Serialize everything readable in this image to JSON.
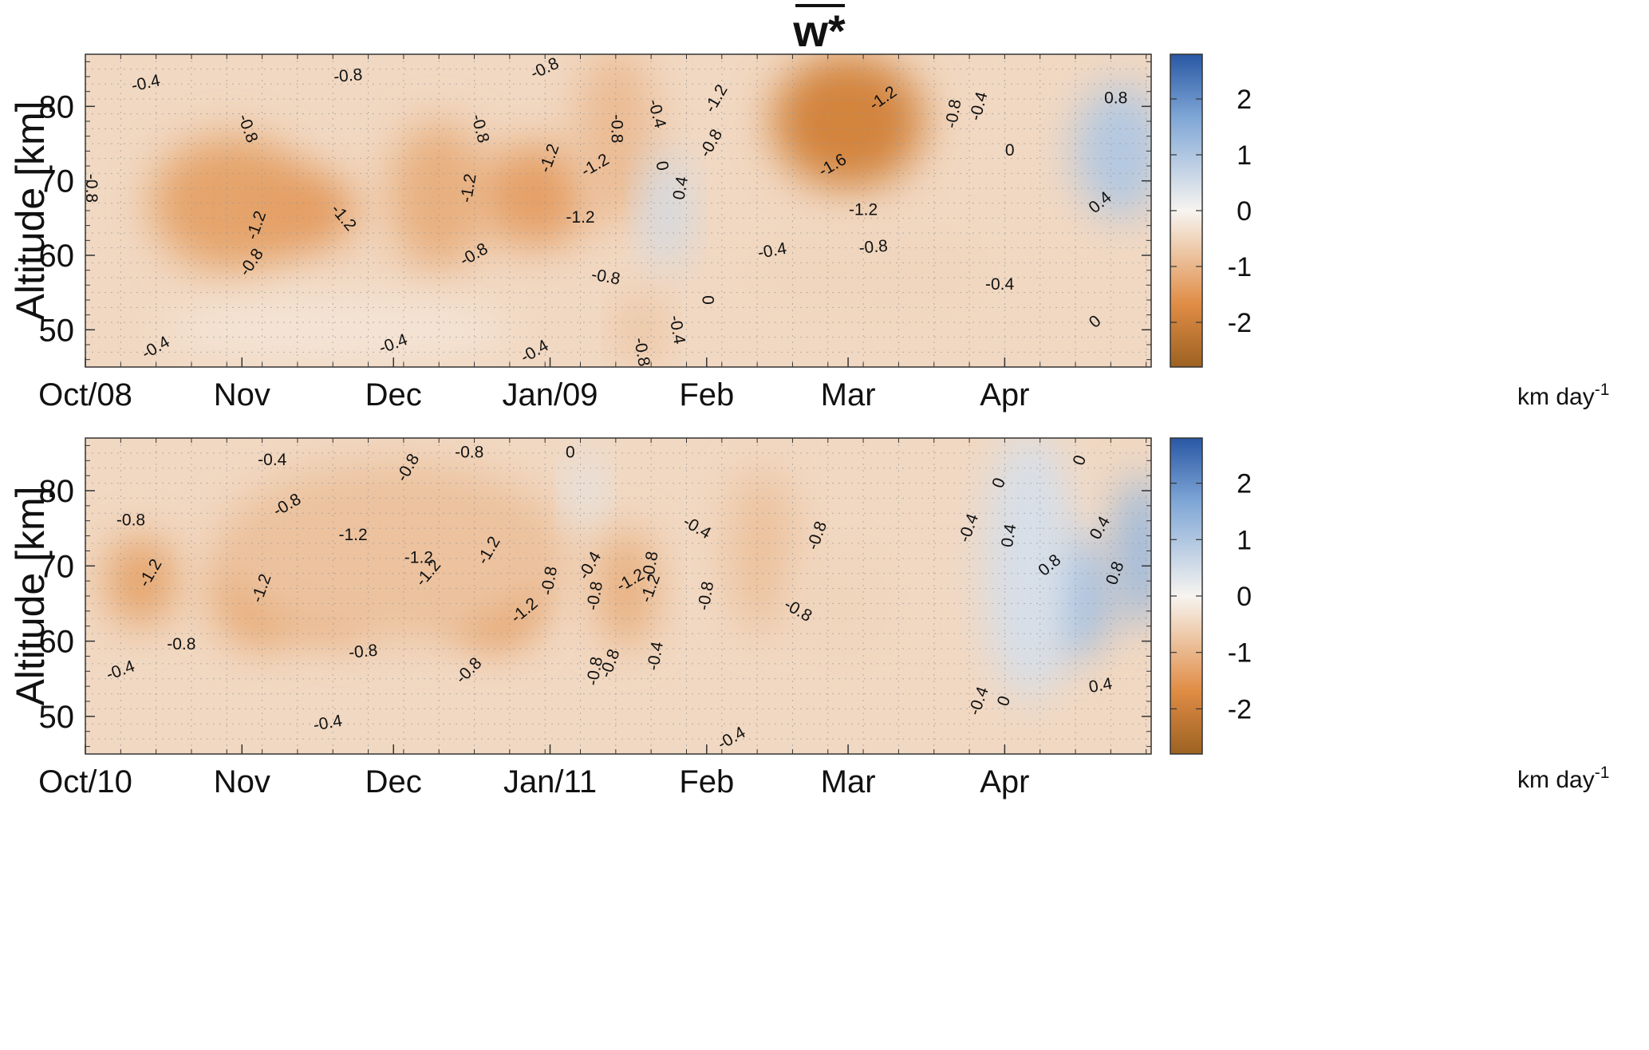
{
  "title": "w*",
  "colorbar": {
    "range": [
      -2.8,
      2.8
    ],
    "ticks": [
      -2,
      -1,
      0,
      1,
      2
    ],
    "tick_labels": [
      "-2",
      "-1",
      "0",
      "1",
      "2"
    ],
    "unit_base": "km day",
    "unit_exp": "-1",
    "colors": {
      "negative": "#b06b1f",
      "mid_negative": "#e08c45",
      "neutral": "#f7f4f0",
      "mid_positive": "#7ea6d6",
      "positive": "#2f5ea8"
    }
  },
  "chart_data": [
    {
      "type": "heatmap",
      "name": "Oct/08 - Apr/09",
      "xlabel": "",
      "ylabel": "Altitude [km]",
      "xlim": [
        "2008-10-01",
        "2009-04-30"
      ],
      "x_ticks": [
        "2008-10-01",
        "2008-11-01",
        "2008-12-01",
        "2009-01-01",
        "2009-02-01",
        "2009-03-01",
        "2009-04-01"
      ],
      "x_tick_labels": [
        "Oct/08",
        "Nov",
        "Dec",
        "Jan/09",
        "Feb",
        "Mar",
        "Apr"
      ],
      "ylim": [
        45,
        87
      ],
      "y_ticks": [
        50,
        60,
        70,
        80
      ],
      "y_tick_labels": [
        "50",
        "60",
        "70",
        "80"
      ],
      "grid": true,
      "blobs": [
        {
          "date": "2008-10-30",
          "alt": 67,
          "value": -1.3,
          "sx": 16,
          "sy": 9
        },
        {
          "date": "2008-11-14",
          "alt": 66,
          "value": -1.4,
          "sx": 10,
          "sy": 5
        },
        {
          "date": "2008-12-10",
          "alt": 68,
          "value": -1.1,
          "sx": 10,
          "sy": 10
        },
        {
          "date": "2008-12-29",
          "alt": 68,
          "value": -1.35,
          "sx": 11,
          "sy": 7
        },
        {
          "date": "2009-01-14",
          "alt": 76,
          "value": -0.9,
          "sx": 8,
          "sy": 12
        },
        {
          "date": "2009-01-24",
          "alt": 66,
          "value": 0.55,
          "sx": 4,
          "sy": 8
        },
        {
          "date": "2009-03-01",
          "alt": 78,
          "value": -1.9,
          "sx": 15,
          "sy": 9
        },
        {
          "date": "2009-03-05",
          "alt": 58,
          "value": -0.5,
          "sx": 24,
          "sy": 5
        },
        {
          "date": "2009-04-24",
          "alt": 74,
          "value": 0.95,
          "sx": 9,
          "sy": 9
        },
        {
          "date": "2009-01-19",
          "alt": 50,
          "value": -0.8,
          "sx": 4,
          "sy": 5
        },
        {
          "date": "2008-11-20",
          "alt": 50,
          "value": -0.25,
          "sx": 35,
          "sy": 4
        }
      ],
      "contour_labels": [
        {
          "text": "-0.4",
          "date": "2008-10-13",
          "alt": 83,
          "rot": -12
        },
        {
          "text": "-0.8",
          "date": "2008-11-22",
          "alt": 84,
          "rot": -5
        },
        {
          "text": "-0.8",
          "date": "2008-12-31",
          "alt": 85,
          "rot": -25
        },
        {
          "text": "-0.8",
          "date": "2008-10-02",
          "alt": 69,
          "rot": 90
        },
        {
          "text": "-0.8",
          "date": "2008-11-02",
          "alt": 77,
          "rot": 70
        },
        {
          "text": "-0.8",
          "date": "2008-12-18",
          "alt": 77,
          "rot": 75
        },
        {
          "text": "-1.2",
          "date": "2008-11-04",
          "alt": 64,
          "rot": -70
        },
        {
          "text": "-1.2",
          "date": "2008-11-21",
          "alt": 65,
          "rot": 50
        },
        {
          "text": "-1.2",
          "date": "2008-12-16",
          "alt": 69,
          "rot": -80
        },
        {
          "text": "-1.2",
          "date": "2009-01-01",
          "alt": 73,
          "rot": -70
        },
        {
          "text": "-1.2",
          "date": "2009-01-07",
          "alt": 65,
          "rot": 0
        },
        {
          "text": "-1.2",
          "date": "2009-01-10",
          "alt": 72,
          "rot": -30
        },
        {
          "text": "-0.8",
          "date": "2008-11-03",
          "alt": 59,
          "rot": -55
        },
        {
          "text": "-0.8",
          "date": "2008-12-17",
          "alt": 60,
          "rot": -30
        },
        {
          "text": "-0.8",
          "date": "2009-01-12",
          "alt": 57,
          "rot": 10
        },
        {
          "text": "-0.8",
          "date": "2009-01-14",
          "alt": 77,
          "rot": 90
        },
        {
          "text": "-0.4",
          "date": "2008-10-15",
          "alt": 47.5,
          "rot": -30
        },
        {
          "text": "-0.4",
          "date": "2008-12-01",
          "alt": 48,
          "rot": -20
        },
        {
          "text": "-0.4",
          "date": "2008-12-29",
          "alt": 47,
          "rot": -30
        },
        {
          "text": "-0.4",
          "date": "2009-01-22",
          "alt": 79,
          "rot": 75
        },
        {
          "text": "0",
          "date": "2009-01-23",
          "alt": 72,
          "rot": 80
        },
        {
          "text": "0.4",
          "date": "2009-01-27",
          "alt": 69,
          "rot": -80
        },
        {
          "text": "0",
          "date": "2009-02-01",
          "alt": 54,
          "rot": 90
        },
        {
          "text": "-0.4",
          "date": "2009-01-26",
          "alt": 50,
          "rot": 80
        },
        {
          "text": "-0.8",
          "date": "2009-01-19",
          "alt": 47,
          "rot": 80
        },
        {
          "text": "-1.2",
          "date": "2009-02-03",
          "alt": 81,
          "rot": -60
        },
        {
          "text": "-0.8",
          "date": "2009-02-02",
          "alt": 75,
          "rot": -60
        },
        {
          "text": "-1.2",
          "date": "2009-03-08",
          "alt": 81,
          "rot": -35
        },
        {
          "text": "-1.6",
          "date": "2009-02-26",
          "alt": 72,
          "rot": -30
        },
        {
          "text": "-1.2",
          "date": "2009-03-04",
          "alt": 66,
          "rot": 0
        },
        {
          "text": "-0.8",
          "date": "2009-03-06",
          "alt": 61,
          "rot": -5
        },
        {
          "text": "-0.4",
          "date": "2009-02-14",
          "alt": 60.5,
          "rot": -10
        },
        {
          "text": "-0.4",
          "date": "2009-03-31",
          "alt": 56,
          "rot": 0
        },
        {
          "text": "-0.8",
          "date": "2009-03-22",
          "alt": 79,
          "rot": -80
        },
        {
          "text": "-0.4",
          "date": "2009-03-27",
          "alt": 80,
          "rot": -75
        },
        {
          "text": "0",
          "date": "2009-04-02",
          "alt": 74,
          "rot": 0
        },
        {
          "text": "0.8",
          "date": "2009-04-23",
          "alt": 81,
          "rot": 0
        },
        {
          "text": "0.4",
          "date": "2009-04-20",
          "alt": 67,
          "rot": -40
        },
        {
          "text": "0",
          "date": "2009-04-19",
          "alt": 51,
          "rot": -40
        }
      ]
    },
    {
      "type": "heatmap",
      "name": "Oct/10 - Apr/11",
      "xlabel": "",
      "ylabel": "Altitude [km]",
      "xlim": [
        "2010-10-01",
        "2011-04-30"
      ],
      "x_ticks": [
        "2010-10-01",
        "2010-11-01",
        "2010-12-01",
        "2011-01-01",
        "2011-02-01",
        "2011-03-01",
        "2011-04-01"
      ],
      "x_tick_labels": [
        "Oct/10",
        "Nov",
        "Dec",
        "Jan/11",
        "Feb",
        "Mar",
        "Apr"
      ],
      "ylim": [
        45,
        87
      ],
      "y_ticks": [
        50,
        60,
        70,
        80
      ],
      "y_tick_labels": [
        "50",
        "60",
        "70",
        "80"
      ],
      "grid": true,
      "blobs": [
        {
          "date": "2010-10-12",
          "alt": 68,
          "value": -1.3,
          "sx": 7,
          "sy": 6
        },
        {
          "date": "2010-11-05",
          "alt": 66,
          "value": -1.2,
          "sx": 10,
          "sy": 7
        },
        {
          "date": "2010-11-19",
          "alt": 67,
          "value": -1.2,
          "sx": 8,
          "sy": 7
        },
        {
          "date": "2010-12-08",
          "alt": 69,
          "value": -1.0,
          "sx": 5,
          "sy": 5
        },
        {
          "date": "2010-12-21",
          "alt": 66,
          "value": -1.4,
          "sx": 10,
          "sy": 7
        },
        {
          "date": "2010-12-01",
          "alt": 72,
          "value": -0.8,
          "sx": 35,
          "sy": 12
        },
        {
          "date": "2011-01-08",
          "alt": 80,
          "value": 0.3,
          "sx": 3,
          "sy": 5
        },
        {
          "date": "2011-01-16",
          "alt": 67,
          "value": -1.1,
          "sx": 6,
          "sy": 8
        },
        {
          "date": "2011-02-12",
          "alt": 72,
          "value": -0.8,
          "sx": 7,
          "sy": 11
        },
        {
          "date": "2011-02-28",
          "alt": 65,
          "value": -0.5,
          "sx": 10,
          "sy": 8
        },
        {
          "date": "2011-04-14",
          "alt": 66,
          "value": 1.25,
          "sx": 8,
          "sy": 8
        },
        {
          "date": "2011-04-28",
          "alt": 72,
          "value": 1.3,
          "sx": 5,
          "sy": 10
        },
        {
          "date": "2011-04-06",
          "alt": 70,
          "value": 0.45,
          "sx": 9,
          "sy": 18
        }
      ],
      "contour_labels": [
        {
          "text": "-0.4",
          "date": "2010-11-07",
          "alt": 84,
          "rot": 0
        },
        {
          "text": "-0.8",
          "date": "2010-10-10",
          "alt": 76,
          "rot": 0
        },
        {
          "text": "-0.8",
          "date": "2010-11-10",
          "alt": 78,
          "rot": -30
        },
        {
          "text": "-0.8",
          "date": "2010-12-04",
          "alt": 83,
          "rot": -60
        },
        {
          "text": "-0.8",
          "date": "2010-12-16",
          "alt": 85,
          "rot": 0
        },
        {
          "text": "-1.2",
          "date": "2010-10-14",
          "alt": 69,
          "rot": -60
        },
        {
          "text": "-1.2",
          "date": "2010-11-05",
          "alt": 67,
          "rot": -70
        },
        {
          "text": "-1.2",
          "date": "2010-11-23",
          "alt": 74,
          "rot": 0
        },
        {
          "text": "-1.2",
          "date": "2010-12-06",
          "alt": 71,
          "rot": 0
        },
        {
          "text": "-1.2",
          "date": "2010-12-08",
          "alt": 69,
          "rot": -50
        },
        {
          "text": "-1.2",
          "date": "2010-12-20",
          "alt": 72,
          "rot": -60
        },
        {
          "text": "-1.2",
          "date": "2010-12-27",
          "alt": 64,
          "rot": -40
        },
        {
          "text": "-0.8",
          "date": "2010-10-20",
          "alt": 59.5,
          "rot": 0
        },
        {
          "text": "-0.8",
          "date": "2010-11-25",
          "alt": 58.5,
          "rot": -5
        },
        {
          "text": "-0.8",
          "date": "2010-12-16",
          "alt": 56,
          "rot": -45
        },
        {
          "text": "-0.4",
          "date": "2010-10-08",
          "alt": 56,
          "rot": -20
        },
        {
          "text": "-0.4",
          "date": "2010-11-18",
          "alt": 49,
          "rot": -10
        },
        {
          "text": "0",
          "date": "2011-01-05",
          "alt": 85,
          "rot": 0
        },
        {
          "text": "-0.8",
          "date": "2011-01-01",
          "alt": 68,
          "rot": -80
        },
        {
          "text": "-0.4",
          "date": "2011-01-09",
          "alt": 70,
          "rot": -60
        },
        {
          "text": "-0.8",
          "date": "2011-01-10",
          "alt": 66,
          "rot": -80
        },
        {
          "text": "-1.2",
          "date": "2011-01-17",
          "alt": 68,
          "rot": -30
        },
        {
          "text": "-1.2",
          "date": "2011-01-21",
          "alt": 67,
          "rot": -70
        },
        {
          "text": "-0.8",
          "date": "2011-01-21",
          "alt": 70,
          "rot": -80
        },
        {
          "text": "-0.8",
          "date": "2011-01-10",
          "alt": 56,
          "rot": -80
        },
        {
          "text": "-0.8",
          "date": "2011-01-13",
          "alt": 57,
          "rot": -70
        },
        {
          "text": "-0.4",
          "date": "2011-01-22",
          "alt": 58,
          "rot": -80
        },
        {
          "text": "-0.4",
          "date": "2011-01-30",
          "alt": 75,
          "rot": 30
        },
        {
          "text": "-0.8",
          "date": "2011-02-01",
          "alt": 66,
          "rot": -80
        },
        {
          "text": "-0.8",
          "date": "2011-02-19",
          "alt": 64,
          "rot": 30
        },
        {
          "text": "-0.8",
          "date": "2011-02-23",
          "alt": 74,
          "rot": -70
        },
        {
          "text": "-0.4",
          "date": "2011-02-06",
          "alt": 47,
          "rot": -30
        },
        {
          "text": "-0.4",
          "date": "2011-03-25",
          "alt": 75,
          "rot": -70
        },
        {
          "text": "0",
          "date": "2011-03-31",
          "alt": 81,
          "rot": -70
        },
        {
          "text": "0.4",
          "date": "2011-04-02",
          "alt": 74,
          "rot": -80
        },
        {
          "text": "0.8",
          "date": "2011-04-10",
          "alt": 70,
          "rot": -40
        },
        {
          "text": "0",
          "date": "2011-04-16",
          "alt": 84,
          "rot": -70
        },
        {
          "text": "0.4",
          "date": "2011-04-20",
          "alt": 75,
          "rot": -60
        },
        {
          "text": "0.8",
          "date": "2011-04-23",
          "alt": 69,
          "rot": -70
        },
        {
          "text": "0.4",
          "date": "2011-04-20",
          "alt": 54,
          "rot": -10
        },
        {
          "text": "-0.4",
          "date": "2011-03-27",
          "alt": 52,
          "rot": -70
        },
        {
          "text": "0",
          "date": "2011-04-01",
          "alt": 52,
          "rot": -70
        }
      ]
    }
  ]
}
